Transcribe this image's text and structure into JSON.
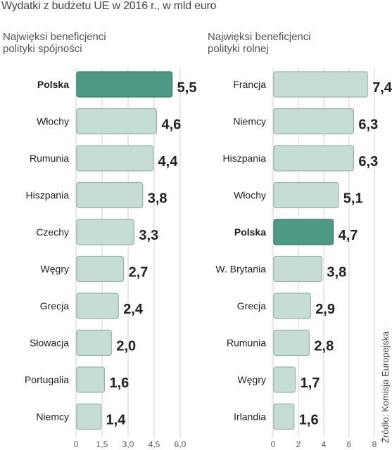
{
  "title": "Wydatki z budżetu UE w 2016 r., w mld euro",
  "source": "Źródło: Komisja Europejska",
  "colors": {
    "bar": "#c5ddd4",
    "bar_border": "#9ab3aa",
    "highlight": "#4e9985",
    "highlight_border": "#3a7a68",
    "grid": "#d0d0d0"
  },
  "chart_data": [
    {
      "type": "bar",
      "orientation": "horizontal",
      "subtitle": "Najwięksi beneficjenci\npolityki spójności",
      "categories": [
        "Polska",
        "Włochy",
        "Rumunia",
        "Hiszpania",
        "Czechy",
        "Węgry",
        "Grecja",
        "Słowacja",
        "Portugalia",
        "Niemcy"
      ],
      "values": [
        5.5,
        4.6,
        4.4,
        3.8,
        3.3,
        2.7,
        2.4,
        2.0,
        1.6,
        1.4
      ],
      "value_labels": [
        "5,5",
        "4,6",
        "4,4",
        "3,8",
        "3,3",
        "2,7",
        "2,4",
        "2,0",
        "1,6",
        "1,4"
      ],
      "highlight": "Polska",
      "xlim": [
        0,
        6.0
      ],
      "ticks": [
        0,
        1.5,
        3.0,
        4.5,
        6.0
      ],
      "tick_labels": [
        "0",
        "1,5",
        "3,0",
        "4,5",
        "6,0"
      ],
      "grid": true
    },
    {
      "type": "bar",
      "orientation": "horizontal",
      "subtitle": "Najwięksi beneficjenci\npolityki rolnej",
      "categories": [
        "Francja",
        "Niemcy",
        "Hiszpania",
        "Włochy",
        "Polska",
        "W. Brytania",
        "Grecja",
        "Rumunia",
        "Węgry",
        "Irlandia"
      ],
      "values": [
        7.4,
        6.3,
        6.3,
        5.1,
        4.7,
        3.8,
        2.9,
        2.8,
        1.7,
        1.6
      ],
      "value_labels": [
        "7,4",
        "6,3",
        "6,3",
        "5,1",
        "4,7",
        "3,8",
        "2,9",
        "2,8",
        "1,7",
        "1,6"
      ],
      "highlight": "Polska",
      "xlim": [
        0,
        8
      ],
      "ticks": [
        0,
        2,
        4,
        6,
        8
      ],
      "tick_labels": [
        "0",
        "2",
        "4",
        "6",
        "8"
      ],
      "grid": true
    }
  ]
}
